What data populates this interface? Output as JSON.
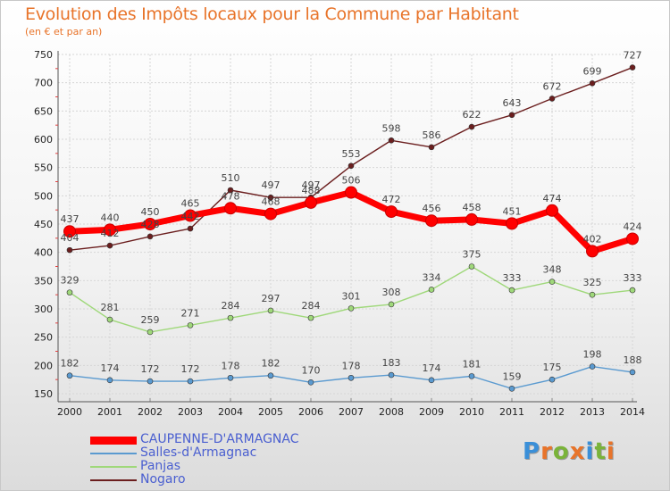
{
  "header": {
    "title": "Evolution des Impôts locaux pour la Commune par Habitant",
    "subtitle": "(en € et par an)"
  },
  "logo": {
    "text": "Proxiti",
    "colors": [
      "#3a8fd8",
      "#e8742a",
      "#7ab33a",
      "#e8742a",
      "#3a8fd8",
      "#7ab33a",
      "#e8742a"
    ]
  },
  "chart_data": {
    "type": "line",
    "x": [
      2000,
      2001,
      2002,
      2003,
      2004,
      2005,
      2006,
      2007,
      2008,
      2009,
      2010,
      2011,
      2012,
      2013,
      2014
    ],
    "ylim": [
      150,
      750
    ],
    "yticks": [
      150,
      200,
      250,
      300,
      350,
      400,
      450,
      500,
      550,
      600,
      650,
      700,
      750
    ],
    "grid": true,
    "legend_position": "bottom-left",
    "series": [
      {
        "name": "Nogaro",
        "color": "#6b1e1e",
        "values": [
          404,
          412,
          428,
          442,
          510,
          497,
          497,
          553,
          598,
          586,
          622,
          643,
          672,
          699,
          727
        ]
      },
      {
        "name": "Panjas",
        "color": "#9fd87a",
        "values": [
          329,
          281,
          259,
          271,
          284,
          297,
          284,
          301,
          308,
          334,
          375,
          333,
          348,
          325,
          333
        ]
      },
      {
        "name": "Salles-d'Armagnac",
        "color": "#5a9ad0",
        "values": [
          182,
          174,
          172,
          172,
          178,
          182,
          170,
          178,
          183,
          174,
          181,
          159,
          175,
          198,
          188
        ]
      },
      {
        "name": "CAUPENNE-D'ARMAGNAC",
        "color": "#ff0000",
        "values": [
          437,
          440,
          450,
          465,
          478,
          468,
          488,
          506,
          472,
          456,
          458,
          451,
          474,
          402,
          424
        ]
      }
    ],
    "legend_order": [
      "CAUPENNE-D'ARMAGNAC",
      "Salles-d'Armagnac",
      "Panjas",
      "Nogaro"
    ]
  }
}
